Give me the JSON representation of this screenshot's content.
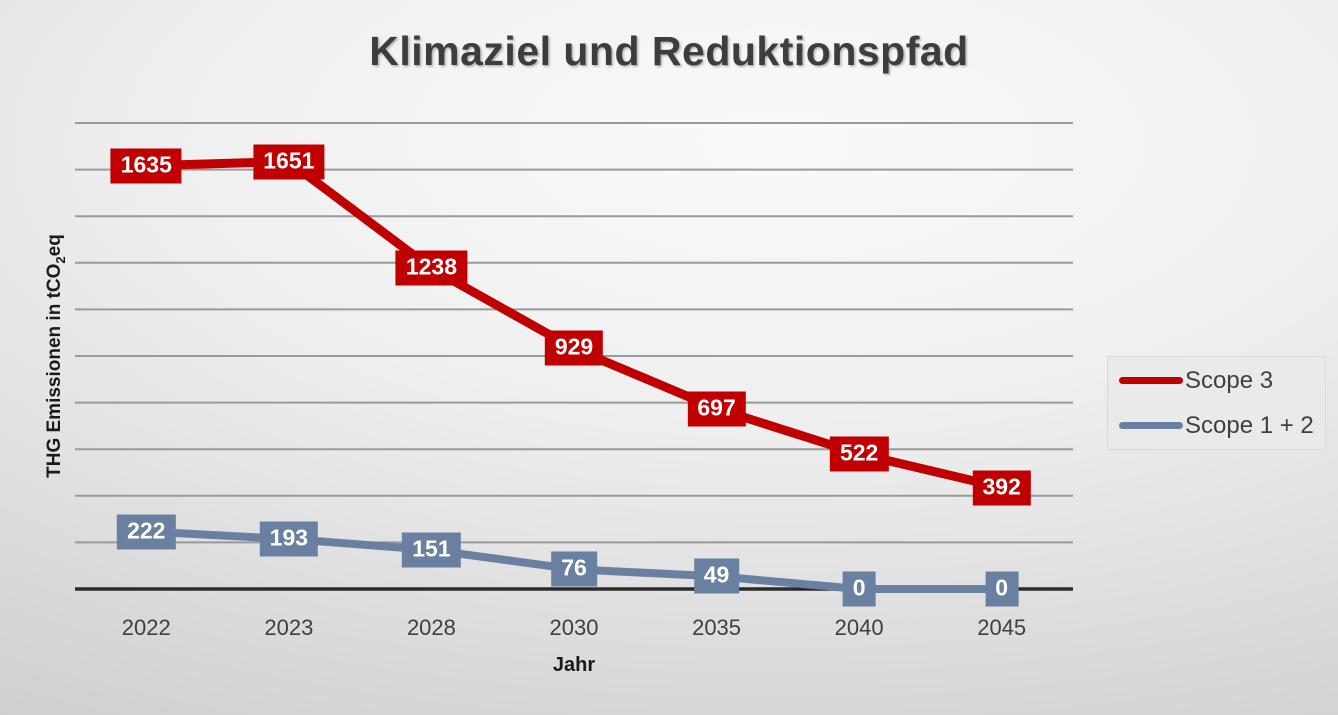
{
  "title": "Klimaziel und Reduktionspfad",
  "axes": {
    "x_label": "Jahr",
    "y_label_prefix": "THG Emissionen in tCO",
    "y_label_sub": "2",
    "y_label_suffix": "eq"
  },
  "colors": {
    "scope3": "#C00000",
    "scope12": "#6A80A0",
    "gridline": "#9a9a9a",
    "axis_line": "#2b2b2b",
    "label_text": "#ffffff"
  },
  "chart_data": {
    "type": "line",
    "categories": [
      "2022",
      "2023",
      "2028",
      "2030",
      "2035",
      "2040",
      "2045"
    ],
    "series": [
      {
        "name": "Scope 3",
        "color": "#C00000",
        "values": [
          1635,
          1651,
          1238,
          929,
          697,
          522,
          392
        ]
      },
      {
        "name": "Scope 1 + 2",
        "color": "#6A80A0",
        "values": [
          222,
          193,
          151,
          76,
          49,
          0,
          0
        ]
      }
    ],
    "title": "Klimaziel und Reduktionspfad",
    "xlabel": "Jahr",
    "ylabel": "THG Emissionen in tCO2eq",
    "ylim": [
      0,
      1800
    ],
    "y_gridline_intervals": 10,
    "grid": true,
    "data_labels": true,
    "legend_position": "right"
  }
}
